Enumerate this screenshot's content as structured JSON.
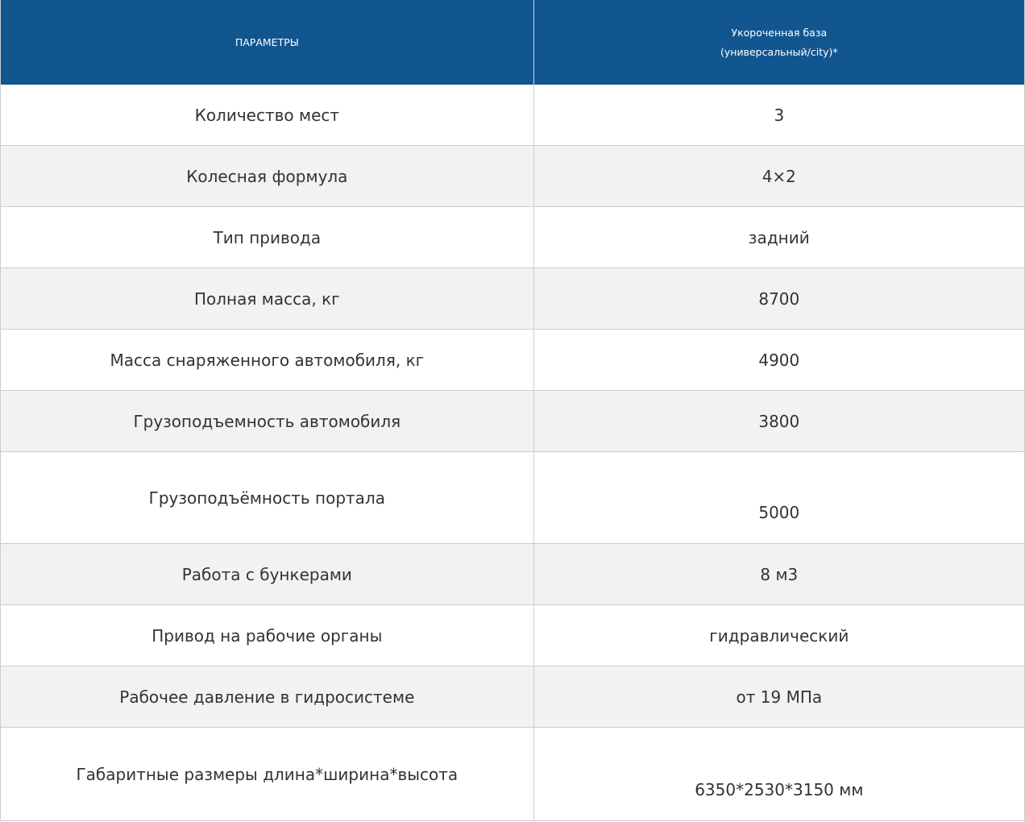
{
  "table": {
    "header": {
      "param_col": "ПАРАМЕТРЫ",
      "value_col_line1": "Укороченная база",
      "value_col_line2": "(универсальный/city)*"
    },
    "rows": [
      {
        "param": "Количество мест",
        "value": "3"
      },
      {
        "param": "Колесная формула",
        "value": "4×2"
      },
      {
        "param": "Тип привода",
        "value": "задний"
      },
      {
        "param": "Полная масса, кг",
        "value": "8700"
      },
      {
        "param": "Масса снаряженного автомобиля, кг",
        "value": "4900"
      },
      {
        "param": "Грузоподъемность автомобиля",
        "value": "3800"
      },
      {
        "param": "Грузоподъёмность портала",
        "value": "5000"
      },
      {
        "param": "Работа с бункерами",
        "value": "8 м3"
      },
      {
        "param": "Привод на рабочие органы",
        "value": "гидравлический"
      },
      {
        "param": "Рабочее давление в гидросистеме",
        "value": "от 19 МПа"
      },
      {
        "param": "Габаритные размеры длина*ширина*высота",
        "value": "6350*2530*3150 мм"
      }
    ],
    "colors": {
      "header_bg": "#12568f",
      "header_text": "#ffffff",
      "row_bg": "#ffffff",
      "row_alt_bg": "#f2f2f2",
      "border": "#cccccc",
      "text": "#333333"
    }
  }
}
